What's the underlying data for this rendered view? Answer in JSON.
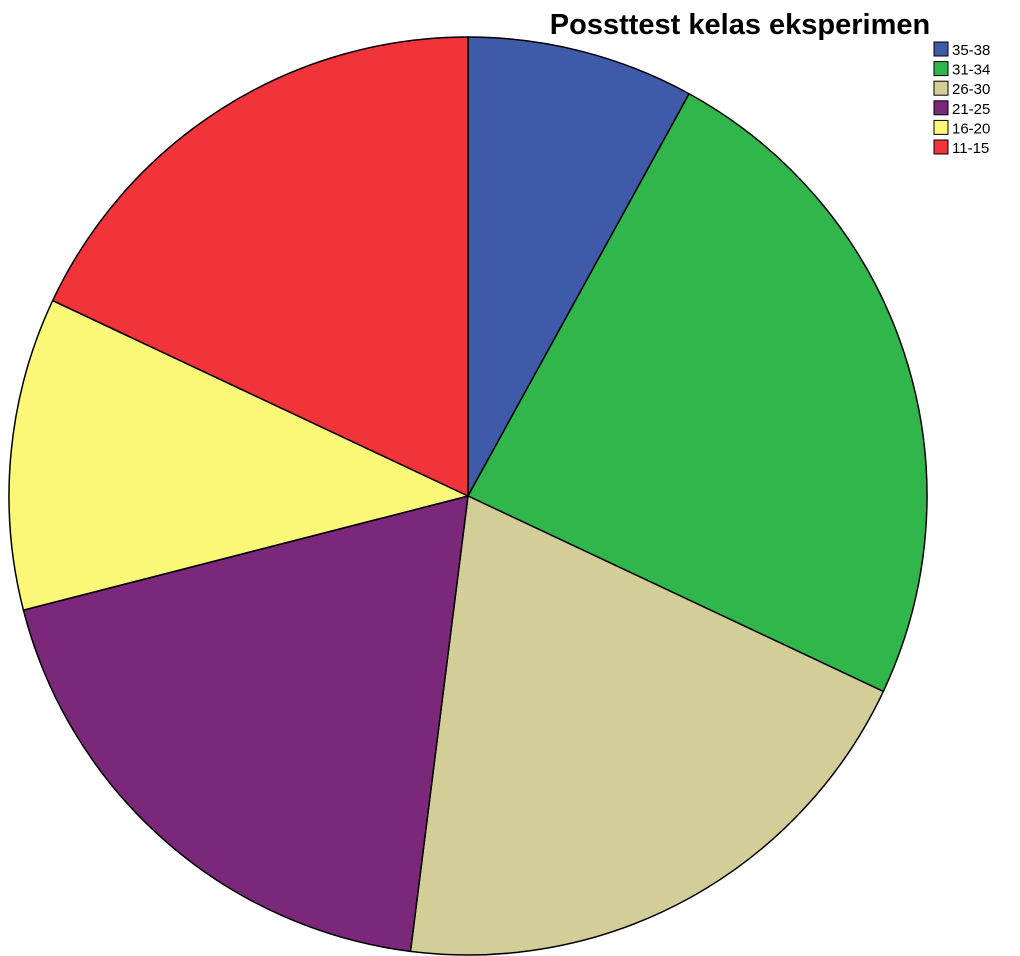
{
  "chart_data": {
    "type": "pie",
    "title": "Possttest kelas eksperimen",
    "legend_position": "top-right",
    "slices": [
      {
        "label": "35-38",
        "value": 8.0,
        "color": "#3f5aa9"
      },
      {
        "label": "31-34",
        "value": 24.0,
        "color": "#31b64b"
      },
      {
        "label": "26-30",
        "value": 20.0,
        "color": "#d3ce98"
      },
      {
        "label": "21-25",
        "value": 19.0,
        "color": "#7b287b"
      },
      {
        "label": "16-20",
        "value": 11.0,
        "color": "#fbf777"
      },
      {
        "label": "11-15",
        "value": 18.0,
        "color": "#f1333a"
      }
    ]
  }
}
